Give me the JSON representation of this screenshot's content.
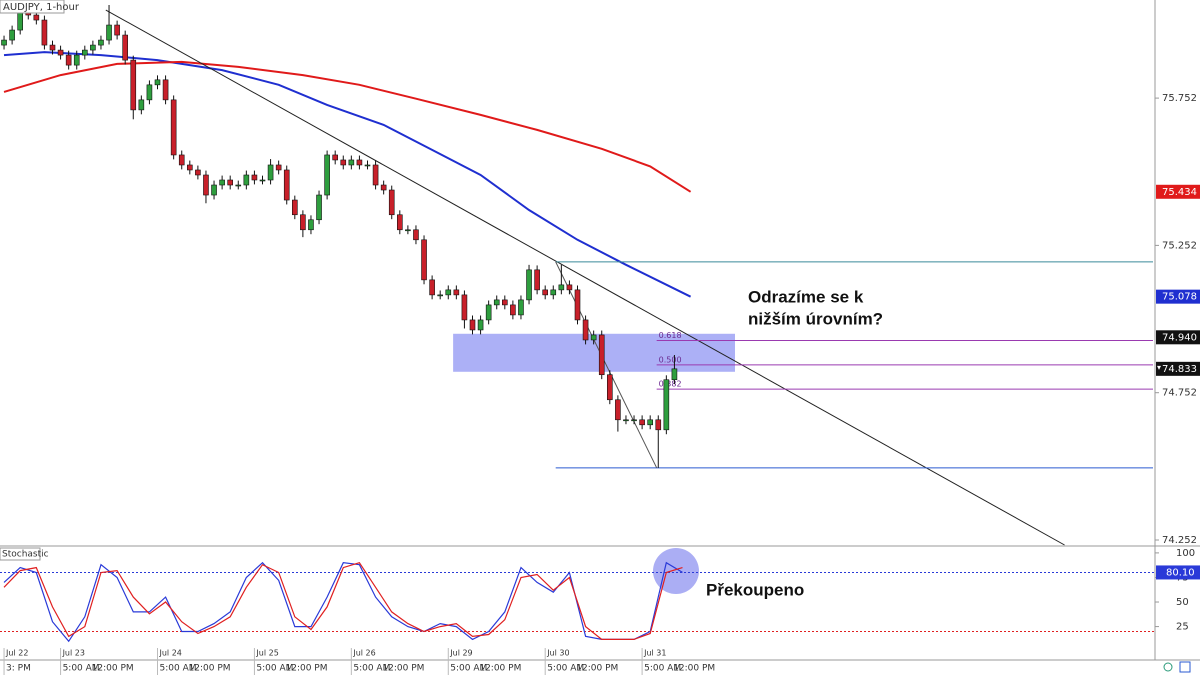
{
  "chart_data": [
    {
      "type": "candlestick",
      "title": "AUDJPY, 1-hour",
      "up_color": "#2e9e3e",
      "down_color": "#c8202a",
      "open": [
        75.932,
        75.949,
        75.983,
        76.051,
        76.034,
        76.017,
        75.932,
        75.915,
        75.898,
        75.864,
        75.898,
        75.915,
        75.932,
        75.949,
        76.0,
        75.966,
        75.881,
        75.712,
        75.746,
        75.797,
        75.814,
        75.746,
        75.559,
        75.525,
        75.508,
        75.491,
        75.423,
        75.457,
        75.474,
        75.457,
        75.457,
        75.491,
        75.474,
        75.474,
        75.525,
        75.508,
        75.406,
        75.356,
        75.305,
        75.339,
        75.423,
        75.559,
        75.542,
        75.525,
        75.542,
        75.525,
        75.525,
        75.457,
        75.44,
        75.356,
        75.305,
        75.305,
        75.271,
        75.135,
        75.084,
        75.084,
        75.101,
        75.084,
        74.999,
        74.965,
        74.999,
        75.05,
        75.067,
        75.05,
        75.016,
        75.067,
        75.169,
        75.101,
        75.084,
        75.101,
        75.118,
        75.101,
        74.999,
        74.931,
        74.948,
        74.813,
        74.728,
        74.66,
        74.66,
        74.66,
        74.643,
        74.66,
        74.626,
        74.796
      ],
      "high": [
        75.964,
        75.998,
        76.07,
        76.066,
        76.049,
        76.032,
        75.947,
        75.93,
        75.913,
        75.913,
        75.93,
        75.947,
        75.964,
        76.068,
        76.015,
        75.981,
        75.896,
        75.761,
        75.812,
        75.829,
        75.829,
        75.761,
        75.574,
        75.54,
        75.523,
        75.506,
        75.472,
        75.489,
        75.489,
        75.472,
        75.506,
        75.506,
        75.489,
        75.545,
        75.54,
        75.523,
        75.421,
        75.371,
        75.354,
        75.438,
        75.574,
        75.574,
        75.557,
        75.557,
        75.557,
        75.54,
        75.54,
        75.472,
        75.455,
        75.371,
        75.32,
        75.32,
        75.286,
        75.15,
        75.099,
        75.116,
        75.116,
        75.099,
        75.014,
        75.014,
        75.065,
        75.082,
        75.082,
        75.065,
        75.082,
        75.186,
        75.184,
        75.116,
        75.116,
        75.186,
        75.133,
        75.116,
        75.014,
        74.963,
        74.963,
        74.828,
        74.743,
        74.675,
        74.675,
        74.675,
        74.675,
        74.675,
        74.811,
        74.88
      ],
      "low": [
        75.917,
        75.934,
        75.968,
        76.019,
        76.002,
        75.917,
        75.9,
        75.883,
        75.849,
        75.849,
        75.883,
        75.9,
        75.917,
        75.934,
        75.951,
        75.866,
        75.68,
        75.697,
        75.731,
        75.782,
        75.731,
        75.544,
        75.51,
        75.493,
        75.476,
        75.395,
        75.408,
        75.442,
        75.442,
        75.442,
        75.442,
        75.459,
        75.459,
        75.459,
        75.493,
        75.391,
        75.341,
        75.28,
        75.29,
        75.324,
        75.408,
        75.527,
        75.51,
        75.51,
        75.51,
        75.51,
        75.442,
        75.425,
        75.341,
        75.29,
        75.29,
        75.256,
        75.12,
        75.069,
        75.069,
        75.069,
        75.069,
        74.97,
        74.95,
        74.95,
        74.984,
        75.035,
        75.035,
        75.001,
        75.001,
        75.052,
        75.086,
        75.069,
        75.069,
        75.086,
        75.086,
        74.984,
        74.916,
        74.916,
        74.798,
        74.713,
        74.62,
        74.645,
        74.645,
        74.628,
        74.628,
        74.497,
        74.611,
        74.781
      ],
      "close": [
        75.949,
        75.983,
        76.051,
        76.034,
        76.017,
        75.932,
        75.915,
        75.898,
        75.864,
        75.898,
        75.915,
        75.932,
        75.949,
        76.0,
        75.966,
        75.881,
        75.712,
        75.746,
        75.797,
        75.814,
        75.746,
        75.559,
        75.525,
        75.508,
        75.491,
        75.423,
        75.457,
        75.474,
        75.457,
        75.457,
        75.491,
        75.474,
        75.474,
        75.525,
        75.508,
        75.406,
        75.356,
        75.305,
        75.339,
        75.423,
        75.559,
        75.542,
        75.525,
        75.542,
        75.525,
        75.525,
        75.457,
        75.44,
        75.356,
        75.305,
        75.305,
        75.271,
        75.135,
        75.084,
        75.084,
        75.101,
        75.084,
        74.999,
        74.965,
        74.999,
        75.05,
        75.067,
        75.05,
        75.016,
        75.067,
        75.169,
        75.101,
        75.084,
        75.101,
        75.118,
        75.101,
        74.999,
        74.931,
        74.948,
        74.813,
        74.728,
        74.66,
        74.66,
        74.66,
        74.643,
        74.66,
        74.626,
        74.796,
        74.833
      ],
      "lines": [
        {
          "color": "#1f2fd0",
          "x": [
            0,
            5,
            12,
            19,
            27,
            34,
            40,
            47,
            53,
            59,
            65,
            71,
            77,
            85
          ],
          "values": [
            75.898,
            75.908,
            75.898,
            75.881,
            75.847,
            75.797,
            75.729,
            75.661,
            75.576,
            75.491,
            75.372,
            75.271,
            75.186,
            75.078
          ]
        },
        {
          "color": "#e01a1a",
          "x": [
            0,
            7,
            14,
            22,
            29,
            37,
            44,
            51,
            59,
            66,
            74,
            80,
            85
          ],
          "values": [
            75.773,
            75.83,
            75.868,
            75.875,
            75.858,
            75.83,
            75.797,
            75.75,
            75.695,
            75.644,
            75.58,
            75.52,
            75.434
          ]
        }
      ],
      "trendline": {
        "x": [
          12.6,
          131.3
        ],
        "y": [
          76.051,
          74.235
        ]
      },
      "fib_x": [
        68.3,
        80.8
      ],
      "fib_range": [
        75.196,
        74.497
      ],
      "fib_range_color": [
        "#3a8a9a",
        "#2a5ad0"
      ],
      "fib_levels": [
        {
          "value": 74.929,
          "label": "0.618"
        },
        {
          "value": 74.8465,
          "label": "0.500"
        },
        {
          "value": 74.764,
          "label": "0.382"
        }
      ],
      "zone": {
        "x": [
          55.6,
          90.5
        ],
        "y": [
          74.823,
          74.952
        ],
        "color": "#9ea2f5"
      },
      "xlim": [
        -0.5,
        142.5
      ],
      "ylim": [
        74.235,
        76.085
      ],
      "yticks": [
        74.252,
        74.752,
        75.252,
        75.752
      ],
      "price_labels": [
        {
          "value": 75.434,
          "color": "#e01a1a"
        },
        {
          "value": 75.078,
          "label": "75.078",
          "color": "#1f2fd0"
        },
        {
          "value": 74.94,
          "label": "74.940",
          "color": "#111111"
        },
        {
          "value": 74.833,
          "color": "#111111"
        }
      ],
      "xticks": [
        {
          "value": 0,
          "label": "Jul 22"
        },
        {
          "value": 7,
          "label": "Jul 23"
        },
        {
          "value": 19,
          "label": "Jul 24"
        },
        {
          "value": 31,
          "label": "Jul 25"
        },
        {
          "value": 43,
          "label": "Jul 26"
        },
        {
          "value": 55,
          "label": "Jul 29"
        },
        {
          "value": 67,
          "label": "Jul 30"
        },
        {
          "value": 79,
          "label": "Jul 31"
        }
      ],
      "xticks_time": [
        {
          "value": 0,
          "label": "3: PM"
        },
        {
          "value": 7,
          "label": "5:00 AM"
        },
        {
          "value": 10.6,
          "label": "12:00 PM"
        },
        {
          "value": 19,
          "label": "5:00 AM"
        },
        {
          "value": 22.6,
          "label": "12:00 PM"
        },
        {
          "value": 31,
          "label": "5:00 AM"
        },
        {
          "value": 34.6,
          "label": "12:00 PM"
        },
        {
          "value": 43,
          "label": "5:00 AM"
        },
        {
          "value": 46.6,
          "label": "12:00 PM"
        },
        {
          "value": 55,
          "label": "5:00 AM"
        },
        {
          "value": 58.6,
          "label": "12:00 PM"
        },
        {
          "value": 67,
          "label": "5:00 AM"
        },
        {
          "value": 70.6,
          "label": "12:00 PM"
        },
        {
          "value": 79,
          "label": "5:00 AM"
        },
        {
          "value": 82.6,
          "label": "12:00 PM"
        }
      ],
      "note_lines": [
        "Odrazíme se k",
        "nižším úrovním?"
      ]
    },
    {
      "type": "stochastic",
      "title": "Stochastic",
      "note": "Překoupeno",
      "x": [
        0,
        2,
        4,
        6,
        8,
        10,
        12,
        14,
        16,
        18,
        20,
        22,
        24,
        26,
        28,
        30,
        32,
        34,
        36,
        38,
        40,
        42,
        44,
        46,
        48,
        50,
        52,
        54,
        56,
        58,
        60,
        62,
        64,
        66,
        68,
        70,
        72,
        74,
        76,
        78,
        80,
        82,
        84
      ],
      "series": [
        {
          "color": "#2a3ad8",
          "values": [
            70,
            85,
            80,
            30,
            10,
            35,
            88,
            75,
            40,
            40,
            55,
            20,
            20,
            28,
            40,
            75,
            90,
            72,
            25,
            25,
            55,
            90,
            88,
            55,
            35,
            25,
            20,
            28,
            25,
            12,
            20,
            40,
            85,
            70,
            60,
            80,
            15,
            12,
            12,
            12,
            20,
            90,
            80.1
          ]
        },
        {
          "color": "#e02020",
          "values": [
            65,
            82,
            85,
            45,
            15,
            25,
            80,
            82,
            55,
            38,
            50,
            30,
            18,
            25,
            35,
            65,
            88,
            80,
            35,
            22,
            45,
            85,
            90,
            65,
            40,
            28,
            20,
            25,
            28,
            15,
            17,
            32,
            75,
            78,
            62,
            75,
            25,
            12,
            12,
            12,
            18,
            80,
            85
          ]
        }
      ],
      "levels": [
        {
          "value": 80,
          "color": "#2a3ad8"
        },
        {
          "value": 20,
          "color": "#e02020"
        }
      ],
      "ylim": [
        -9,
        106
      ],
      "yticks": [
        25,
        50,
        75,
        100
      ],
      "last_label": {
        "value": 80.1,
        "label": "80.10",
        "color": "#2a3ad8"
      }
    }
  ]
}
